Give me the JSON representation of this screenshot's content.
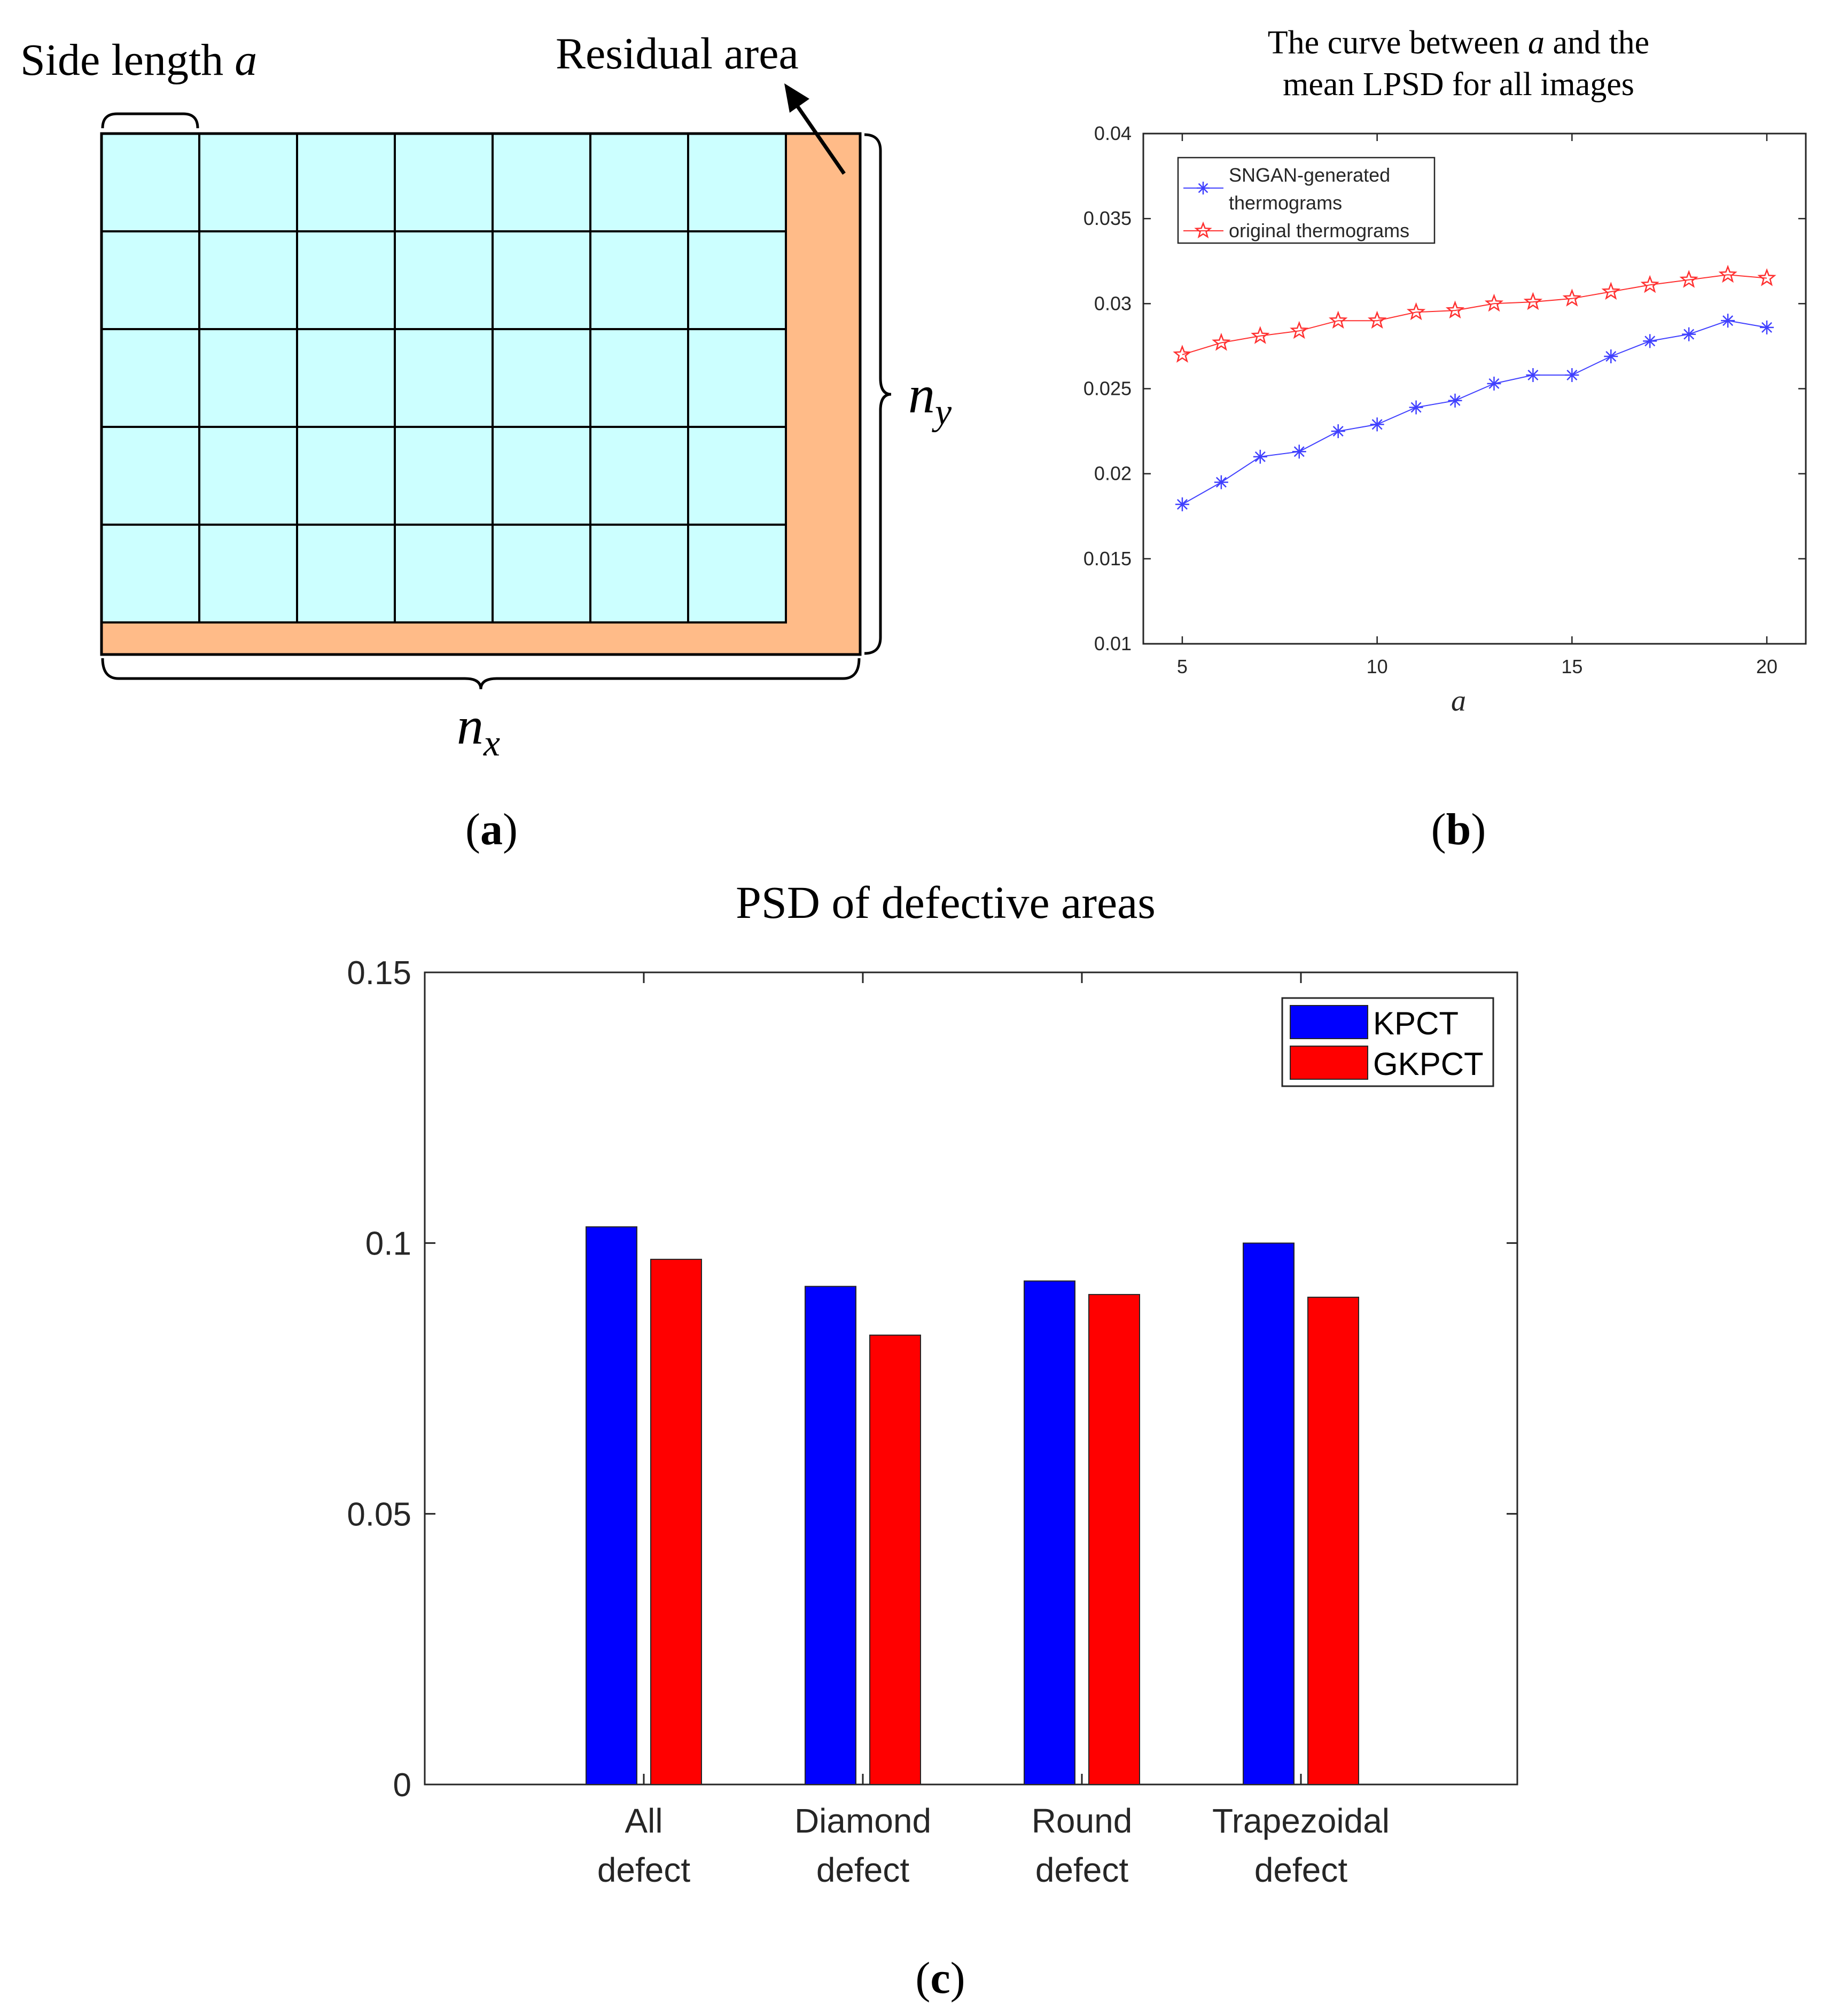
{
  "panel_a": {
    "caption": "a",
    "side_length_label": "Side length",
    "side_length_var": "a",
    "residual_label": "Residual area",
    "nx_base": "n",
    "nx_sub": "x",
    "ny_base": "n",
    "ny_sub": "y",
    "grid_cols": 7,
    "grid_rows": 5,
    "cell_color": "#ccffff",
    "residual_color": "#ffbb88"
  },
  "panel_b": {
    "caption": "b"
  },
  "panel_c": {
    "caption": "c"
  },
  "chart_data": [
    {
      "type": "line",
      "title_line1_pre": "The curve between ",
      "title_var": "a",
      "title_line1_post": " and the",
      "title_line2": "mean LPSD for all images",
      "xlabel": "a",
      "ylabel": "",
      "xlim": [
        4,
        21
      ],
      "ylim": [
        0.01,
        0.04
      ],
      "xticks": [
        5,
        10,
        15,
        20
      ],
      "yticks": [
        0.01,
        0.015,
        0.02,
        0.025,
        0.03,
        0.035,
        0.04
      ],
      "ytick_labels": [
        "0.01",
        "0.015",
        "0.02",
        "0.025",
        "0.03",
        "0.035",
        "0.04"
      ],
      "x": [
        5,
        6,
        7,
        8,
        9,
        10,
        11,
        12,
        13,
        14,
        15,
        16,
        17,
        18,
        19,
        20
      ],
      "series": [
        {
          "name": "SNGAN-generated thermograms",
          "legend_line1": "SNGAN-generated",
          "legend_line2": "thermograms",
          "color": "#4040ff",
          "marker": "asterisk",
          "values": [
            0.0182,
            0.0195,
            0.021,
            0.0213,
            0.0225,
            0.0229,
            0.0239,
            0.0243,
            0.0253,
            0.0258,
            0.0258,
            0.0269,
            0.0278,
            0.0282,
            0.029,
            0.0286
          ]
        },
        {
          "name": "original thermograms",
          "legend_line1": "original thermograms",
          "color": "#ff3030",
          "marker": "pentagram",
          "values": [
            0.027,
            0.0277,
            0.0281,
            0.0284,
            0.029,
            0.029,
            0.0295,
            0.0296,
            0.03,
            0.0301,
            0.0303,
            0.0307,
            0.0311,
            0.0314,
            0.0317,
            0.0315
          ]
        }
      ]
    },
    {
      "type": "bar",
      "title": "PSD of defective areas",
      "categories": [
        {
          "line1": "All",
          "line2": "defect"
        },
        {
          "line1": "Diamond",
          "line2": "defect"
        },
        {
          "line1": "Round",
          "line2": "defect"
        },
        {
          "line1": "Trapezoidal",
          "line2": "defect"
        }
      ],
      "ylim": [
        0,
        0.15
      ],
      "yticks": [
        0,
        0.05,
        0.1,
        0.15
      ],
      "ytick_labels": [
        "0",
        "0.05",
        "0.1",
        "0.15"
      ],
      "series": [
        {
          "name": "KPCT",
          "color": "#0000ff",
          "values": [
            0.103,
            0.092,
            0.093,
            0.1
          ]
        },
        {
          "name": "GKPCT",
          "color": "#ff0000",
          "values": [
            0.097,
            0.083,
            0.0905,
            0.09
          ]
        }
      ],
      "legend_position": "top-right"
    }
  ]
}
